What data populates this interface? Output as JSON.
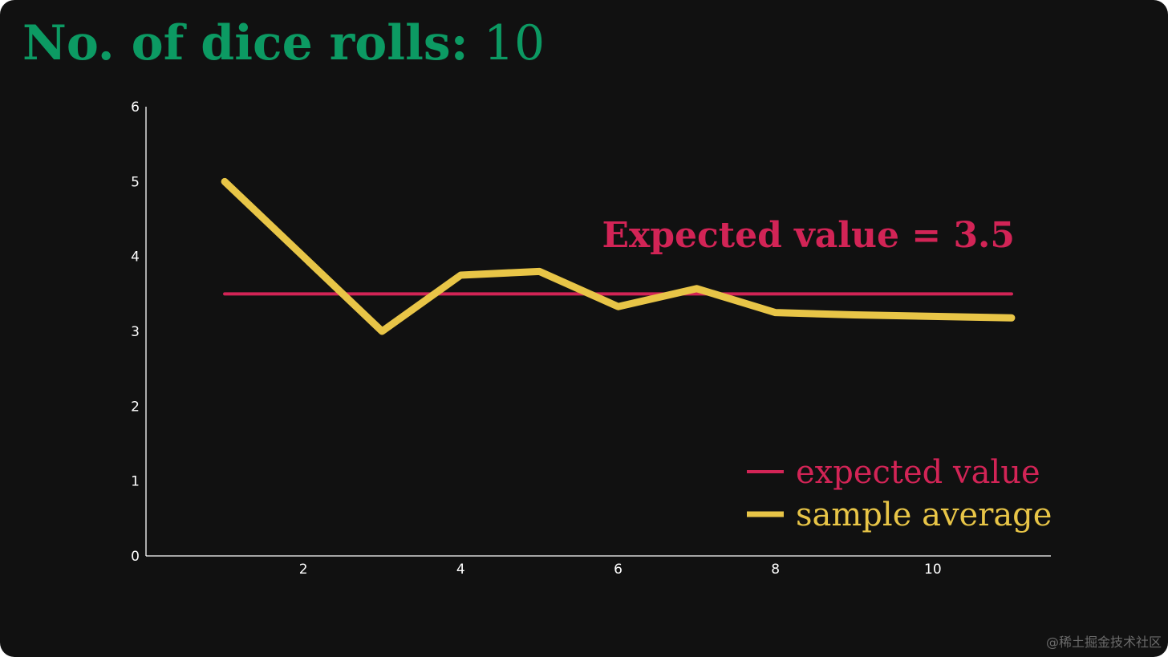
{
  "header": {
    "title_label": "No. of dice rolls:",
    "title_value": "10"
  },
  "watermark": "@稀土掘金技术社区",
  "colors": {
    "background": "#111111",
    "title": "#0c9a63",
    "expected": "#d22456",
    "sample": "#e8c547",
    "axis": "#ffffff"
  },
  "chart_data": {
    "type": "line",
    "xlim": [
      0.0,
      11.5
    ],
    "ylim": [
      0,
      6
    ],
    "xticks": [
      2,
      4,
      6,
      8,
      10
    ],
    "yticks": [
      0,
      1,
      2,
      3,
      4,
      5,
      6
    ],
    "grid": false,
    "legend_position": "bottom-right",
    "annotation": "Expected value = 3.5",
    "series": [
      {
        "name": "expected value",
        "color": "#d22456",
        "x": [
          1,
          11
        ],
        "y": [
          3.5,
          3.5
        ]
      },
      {
        "name": "sample average",
        "color": "#e8c547",
        "x": [
          1,
          2,
          3,
          4,
          5,
          6,
          7,
          8,
          9,
          10,
          11
        ],
        "y": [
          5.0,
          4.0,
          3.0,
          3.75,
          3.8,
          3.33,
          3.57,
          3.25,
          3.22,
          3.2,
          3.18
        ]
      }
    ]
  }
}
